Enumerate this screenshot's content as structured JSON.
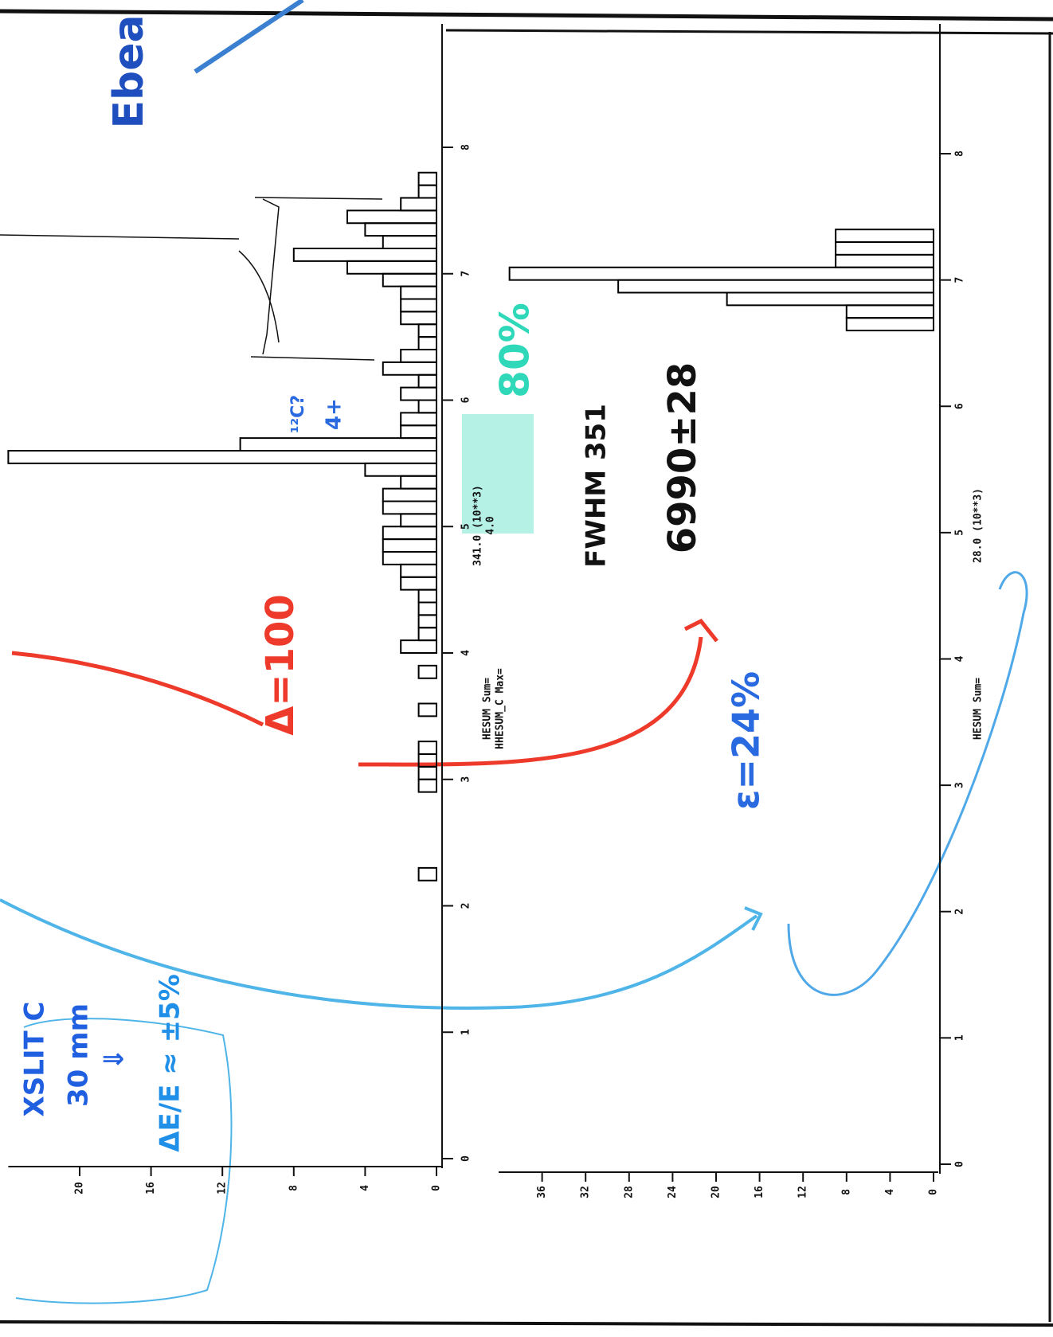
{
  "chart_data": [
    {
      "type": "histogram",
      "bins": [
        2.0,
        2.1,
        2.2,
        2.3,
        2.4,
        2.5,
        2.6,
        2.7,
        2.8,
        2.9,
        3.0,
        3.1,
        3.2,
        3.3,
        3.4,
        3.5,
        3.6,
        3.7,
        3.8,
        3.9,
        4.0,
        4.1,
        4.2,
        4.3,
        4.4,
        4.5,
        4.6,
        4.7,
        4.8,
        4.9,
        5.0,
        5.1,
        5.2,
        5.3,
        5.4,
        5.5,
        5.6,
        5.7,
        5.8,
        5.9,
        6.0,
        6.1,
        6.2,
        6.3,
        6.4,
        6.5,
        6.6,
        6.7,
        6.8,
        6.9,
        7.0,
        7.1,
        7.2,
        7.3,
        7.4,
        7.5,
        7.6,
        7.7,
        7.8
      ],
      "values": [
        0,
        0,
        1,
        0,
        0,
        0,
        0,
        0,
        0,
        1,
        1,
        1,
        1,
        0,
        0,
        1,
        0,
        0,
        1,
        0,
        2,
        1,
        1,
        1,
        1,
        2,
        2,
        3,
        3,
        3,
        2,
        3,
        3,
        2,
        4,
        24,
        11,
        2,
        2,
        1,
        2,
        1,
        3,
        2,
        1,
        1,
        2,
        2,
        2,
        3,
        5,
        8,
        3,
        4,
        5,
        2,
        1,
        1
      ],
      "color": "#000000",
      "xlim": [
        0,
        9
      ],
      "xticks": [
        0,
        1,
        2,
        3,
        4,
        5,
        6,
        7,
        8
      ],
      "ylim": [
        0,
        24
      ],
      "yticks": [
        0,
        4,
        8,
        12,
        16,
        20
      ],
      "stat_labels": [
        "HESUM Sum=",
        "HHESUM_C Max=",
        "341.0 (10**3)",
        "4.0"
      ]
    },
    {
      "type": "histogram",
      "bins": [
        6.6,
        6.7,
        6.8,
        6.9,
        7.0,
        7.1,
        7.2,
        7.3,
        7.4
      ],
      "values": [
        8,
        8,
        19,
        29,
        39,
        9,
        9,
        9
      ],
      "color": "#000000",
      "xlim": [
        0,
        9
      ],
      "xticks": [
        0,
        1,
        2,
        3,
        4,
        5,
        6,
        7,
        8
      ],
      "ylim": [
        0,
        40
      ],
      "yticks": [
        0,
        4,
        8,
        12,
        16,
        20,
        24,
        28,
        32,
        36
      ],
      "stat_labels": [
        "HESUM Sum=",
        "28.0 (10**3)"
      ]
    }
  ],
  "handwritten_notes": [
    "Ebea",
    "¹²C?",
    "4+",
    "80%",
    "FWHM 351",
    "6990±28",
    "Δ=100",
    "ε=24%",
    "XSLIT C",
    "30 mm",
    "⇓",
    "ΔE/E ≈ ±5%"
  ]
}
